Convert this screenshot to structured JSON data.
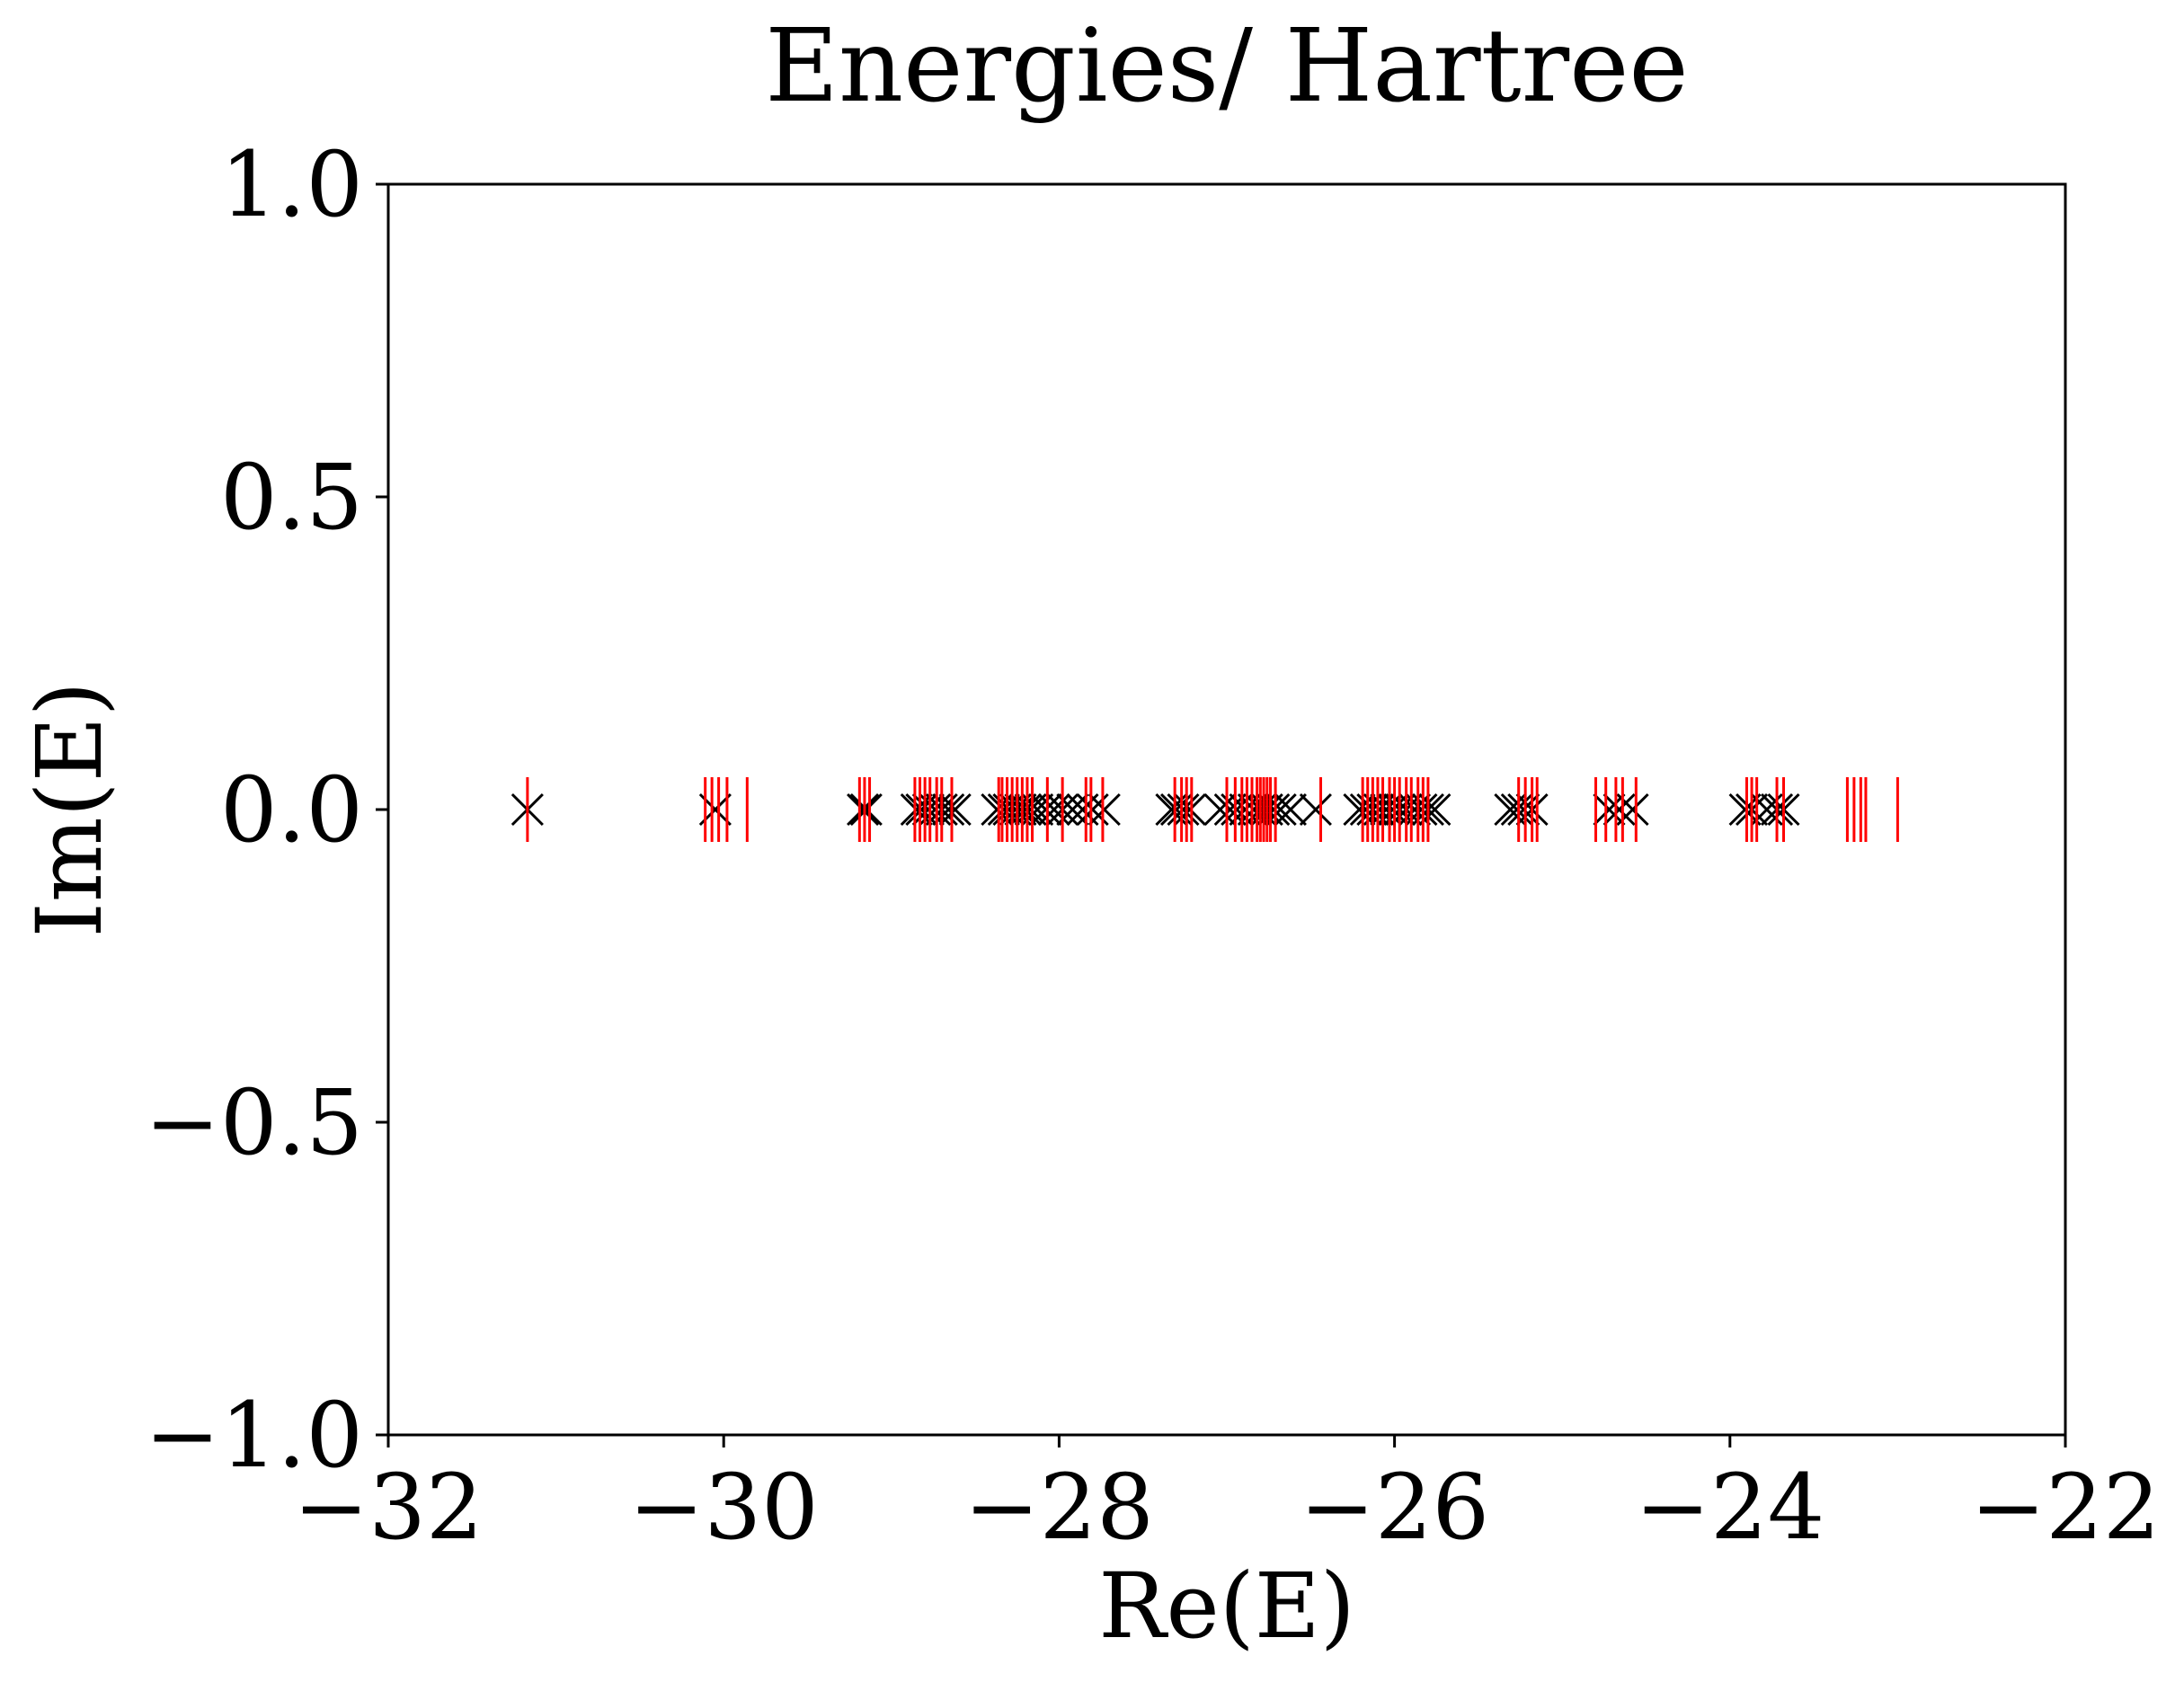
{
  "chart_data": {
    "type": "scatter",
    "title": "Energies/ Hartree",
    "xlabel": "Re(E)",
    "ylabel": "Im(E)",
    "xlim": [
      -32,
      -22
    ],
    "ylim": [
      -1.0,
      1.0
    ],
    "x_ticks": [
      "−32",
      "−30",
      "−28",
      "−26",
      "−24",
      "−22"
    ],
    "x_tick_values": [
      -32,
      -30,
      -28,
      -26,
      -24,
      -22
    ],
    "y_ticks": [
      "1.0",
      "0.5",
      "0.0",
      "−0.5",
      "−1.0"
    ],
    "y_tick_values": [
      1.0,
      0.5,
      0.0,
      -0.5,
      -1.0
    ],
    "grid": false,
    "series": [
      {
        "marker": "x",
        "color": "#000000",
        "x": [
          -31.17,
          -30.05,
          -29.17,
          -29.15,
          -28.85,
          -28.82,
          -28.78,
          -28.74,
          -28.7,
          -28.66,
          -28.62,
          -28.37,
          -28.33,
          -28.3,
          -28.26,
          -28.23,
          -28.2,
          -28.17,
          -28.13,
          -28.08,
          -28.03,
          -27.98,
          -27.92,
          -27.86,
          -27.8,
          -27.73,
          -27.33,
          -27.3,
          -27.26,
          -27.22,
          -27.04,
          -26.98,
          -26.94,
          -26.89,
          -26.84,
          -26.8,
          -26.76,
          -26.72,
          -26.68,
          -26.62,
          -26.47,
          -26.21,
          -26.17,
          -26.13,
          -26.09,
          -26.05,
          -26.01,
          -25.97,
          -25.93,
          -25.88,
          -25.84,
          -25.8,
          -25.76,
          -25.31,
          -25.27,
          -25.23,
          -25.18,
          -24.72,
          -24.66,
          -24.58,
          -23.91,
          -23.87,
          -23.78,
          -23.72,
          -23.68
        ],
        "y": [
          0,
          0,
          0,
          0,
          0,
          0,
          0,
          0,
          0,
          0,
          0,
          0,
          0,
          0,
          0,
          0,
          0,
          0,
          0,
          0,
          0,
          0,
          0,
          0,
          0,
          0,
          0,
          0,
          0,
          0,
          0,
          0,
          0,
          0,
          0,
          0,
          0,
          0,
          0,
          0,
          0,
          0,
          0,
          0,
          0,
          0,
          0,
          0,
          0,
          0,
          0,
          0,
          0,
          0,
          0,
          0,
          0,
          0,
          0,
          0,
          0,
          0,
          0,
          0,
          0
        ]
      },
      {
        "marker": "|",
        "color": "#ff0000",
        "x": [
          -31.17,
          -30.11,
          -30.07,
          -30.03,
          -29.98,
          -29.86,
          -29.19,
          -29.16,
          -29.13,
          -28.86,
          -28.83,
          -28.8,
          -28.77,
          -28.73,
          -28.7,
          -28.64,
          -28.36,
          -28.34,
          -28.31,
          -28.28,
          -28.25,
          -28.22,
          -28.19,
          -28.16,
          -28.07,
          -27.98,
          -27.84,
          -27.81,
          -27.74,
          -27.31,
          -27.27,
          -27.24,
          -27.21,
          -27.0,
          -26.95,
          -26.91,
          -26.88,
          -26.85,
          -26.82,
          -26.8,
          -26.78,
          -26.76,
          -26.74,
          -26.71,
          -26.44,
          -26.19,
          -26.16,
          -26.13,
          -26.1,
          -26.07,
          -26.03,
          -26.0,
          -25.97,
          -25.93,
          -25.9,
          -25.86,
          -25.83,
          -25.8,
          -25.26,
          -25.22,
          -25.18,
          -25.15,
          -24.8,
          -24.74,
          -24.68,
          -24.64,
          -24.56,
          -23.9,
          -23.87,
          -23.84,
          -23.72,
          -23.68,
          -23.3,
          -23.26,
          -23.22,
          -23.19,
          -23.0
        ],
        "y": [
          0,
          0,
          0,
          0,
          0,
          0,
          0,
          0,
          0,
          0,
          0,
          0,
          0,
          0,
          0,
          0,
          0,
          0,
          0,
          0,
          0,
          0,
          0,
          0,
          0,
          0,
          0,
          0,
          0,
          0,
          0,
          0,
          0,
          0,
          0,
          0,
          0,
          0,
          0,
          0,
          0,
          0,
          0,
          0,
          0,
          0,
          0,
          0,
          0,
          0,
          0,
          0,
          0,
          0,
          0,
          0,
          0,
          0,
          0,
          0,
          0,
          0,
          0,
          0,
          0,
          0,
          0,
          0,
          0,
          0,
          0,
          0,
          0,
          0,
          0,
          0,
          0
        ]
      }
    ]
  }
}
